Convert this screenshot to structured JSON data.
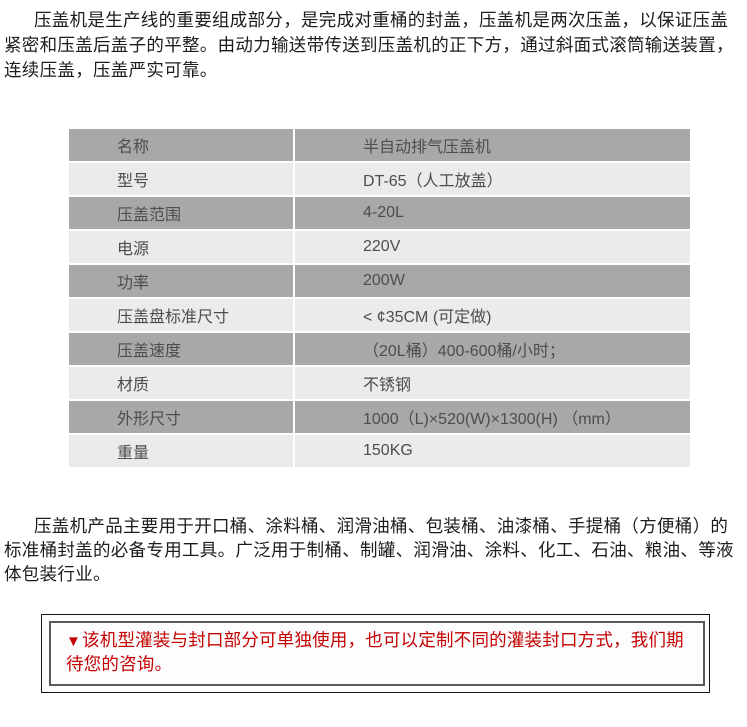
{
  "page": {
    "intro_paragraph": "压盖机是生产线的重要组成部分，是完成对重桶的封盖，压盖机是两次压盖，以保证压盖紧密和压盖后盖子的平整。由动力输送带传送到压盖机的正下方，通过斜面式滚筒输送装置，连续压盖，压盖严实可靠。",
    "spec_table": {
      "rows": [
        {
          "label": "名称",
          "value": "半自动排气压盖机"
        },
        {
          "label": "型号",
          "value": "DT-65（人工放盖）"
        },
        {
          "label": "压盖范围",
          "value": "4-20L"
        },
        {
          "label": "电源",
          "value": "220V"
        },
        {
          "label": "功率",
          "value": "200W"
        },
        {
          "label": "压盖盘标准尺寸",
          "value": "< ¢35CM (可定做)"
        },
        {
          "label": "压盖速度",
          "value": "（20L桶）400-600桶/小时；"
        },
        {
          "label": "材质",
          "value": "不锈钢"
        },
        {
          "label": "外形尺寸",
          "value": "1000（L)×520(W)×1300(H) （mm）"
        },
        {
          "label": "重量",
          "value": "150KG"
        }
      ]
    },
    "usage_paragraph": "压盖机产品主要用于开口桶、涂料桶、润滑油桶、包装桶、油漆桶、手提桶（方便桶）的标准桶封盖的必备专用工具。广泛用于制桶、制罐、润滑油、涂料、化工、石油、粮油、等液体包装行业。",
    "notice": {
      "marker": "▼",
      "text": "该机型灌装与封口部分可单独使用，也可以定制不同的灌装封口方式，我们期待您的咨询。"
    },
    "colors": {
      "row_dark": "#a8a8a8",
      "row_light": "#ebebeb",
      "table_text": "#4d4d4d",
      "notice_text": "#c40000",
      "notice_border_outer": "#161616",
      "notice_border_inner": "#5a5a5a"
    }
  }
}
